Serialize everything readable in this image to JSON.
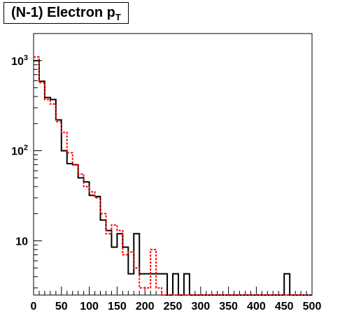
{
  "title": {
    "main": "(N-1) Electron p",
    "sub": "T"
  },
  "chart_data": {
    "type": "line",
    "plot_style": "step histogram",
    "y_scale": "log",
    "xlim": [
      0,
      500
    ],
    "ylim": [
      2.5,
      2000
    ],
    "bin_width": 10,
    "x_ticks": [
      "0",
      "50",
      "100",
      "150",
      "200",
      "250",
      "300",
      "350",
      "400",
      "450",
      "500"
    ],
    "y_ticks": [
      {
        "value": 10,
        "base": "10",
        "exp": ""
      },
      {
        "value": 100,
        "base": "10",
        "exp": "2"
      },
      {
        "value": 1000,
        "base": "10",
        "exp": "3"
      }
    ],
    "grid": false,
    "legend": "none",
    "series": [
      {
        "color": "#000000",
        "dash": "solid",
        "values": [
          1000,
          590,
          390,
          370,
          220,
          100,
          72,
          70,
          50,
          45,
          32,
          31,
          17,
          13,
          8.5,
          12,
          8.5,
          4.3,
          12,
          4.3,
          4.3,
          4.3,
          4.3,
          4.3,
          0,
          4.3,
          0,
          4.3,
          0,
          0,
          0,
          0,
          0,
          0,
          0,
          0,
          0,
          0,
          0,
          0,
          0,
          0,
          0,
          0,
          0,
          4.3,
          0,
          0,
          0,
          0
        ]
      },
      {
        "color": "#ff0000",
        "dash": "dashed",
        "values": [
          1100,
          570,
          370,
          330,
          210,
          160,
          95,
          70,
          55,
          40,
          35,
          30,
          20,
          12,
          15,
          13,
          7,
          7.5,
          5,
          3,
          3,
          8,
          3,
          0,
          0,
          0,
          0,
          0,
          0,
          0,
          0,
          0,
          0,
          0,
          0,
          0,
          0,
          0,
          0,
          0,
          0,
          0,
          0,
          0,
          0,
          0,
          0,
          0,
          0,
          0
        ]
      }
    ]
  }
}
